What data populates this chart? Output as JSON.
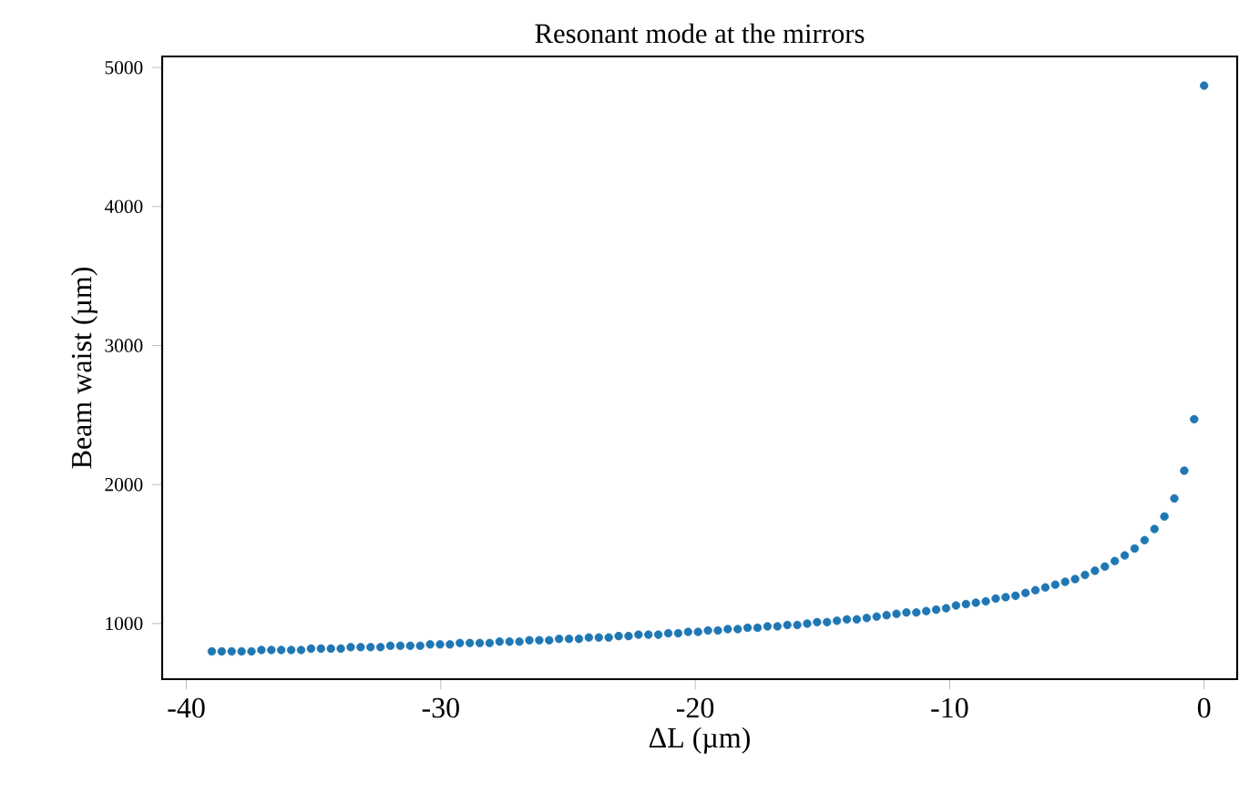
{
  "chart_data": {
    "type": "scatter",
    "title": "Resonant mode at the mirrors",
    "xlabel": "ΔL (µm)",
    "ylabel": "Beam waist (µm)",
    "x": [
      -39.0,
      -38.61,
      -38.22,
      -37.83,
      -37.44,
      -37.05,
      -36.66,
      -36.27,
      -35.88,
      -35.49,
      -35.1,
      -34.71,
      -34.32,
      -33.93,
      -33.54,
      -33.15,
      -32.76,
      -32.37,
      -31.98,
      -31.59,
      -31.2,
      -30.81,
      -30.42,
      -30.03,
      -29.64,
      -29.25,
      -28.86,
      -28.47,
      -28.08,
      -27.69,
      -27.3,
      -26.91,
      -26.52,
      -26.13,
      -25.74,
      -25.35,
      -24.96,
      -24.57,
      -24.18,
      -23.79,
      -23.4,
      -23.01,
      -22.62,
      -22.23,
      -21.84,
      -21.45,
      -21.06,
      -20.67,
      -20.28,
      -19.89,
      -19.5,
      -19.11,
      -18.72,
      -18.33,
      -17.94,
      -17.55,
      -17.16,
      -16.77,
      -16.38,
      -15.99,
      -15.6,
      -15.21,
      -14.82,
      -14.43,
      -14.04,
      -13.65,
      -13.26,
      -12.87,
      -12.48,
      -12.09,
      -11.7,
      -11.31,
      -10.92,
      -10.53,
      -10.14,
      -9.75,
      -9.36,
      -8.97,
      -8.58,
      -8.19,
      -7.8,
      -7.41,
      -7.02,
      -6.63,
      -6.24,
      -5.85,
      -5.46,
      -5.07,
      -4.68,
      -4.29,
      -3.9,
      -3.51,
      -3.12,
      -2.73,
      -2.34,
      -1.95,
      -1.56,
      -1.17,
      -0.78,
      -0.39,
      0
    ],
    "series": [
      {
        "color": "#1f77b4",
        "values": [
          800,
          800,
          800,
          800,
          800,
          810,
          810,
          810,
          810,
          810,
          820,
          820,
          820,
          820,
          830,
          830,
          830,
          830,
          840,
          840,
          840,
          840,
          850,
          850,
          850,
          860,
          860,
          860,
          860,
          870,
          870,
          870,
          880,
          880,
          880,
          890,
          890,
          890,
          900,
          900,
          900,
          910,
          910,
          920,
          920,
          920,
          930,
          930,
          940,
          940,
          950,
          950,
          960,
          960,
          970,
          970,
          980,
          980,
          990,
          990,
          1000,
          1010,
          1010,
          1020,
          1030,
          1030,
          1040,
          1050,
          1060,
          1070,
          1080,
          1080,
          1090,
          1100,
          1110,
          1130,
          1140,
          1150,
          1160,
          1180,
          1190,
          1200,
          1220,
          1240,
          1260,
          1280,
          1300,
          1320,
          1350,
          1380,
          1410,
          1450,
          1490,
          1540,
          1600,
          1680,
          1770,
          1900,
          2100,
          2470,
          4870
        ]
      }
    ],
    "xlim": [
      -40.95,
      1.3
    ],
    "ylim": [
      600,
      5080
    ],
    "xticks": [
      -40,
      -30,
      -20,
      -10,
      0
    ],
    "yticks": [
      1000,
      2000,
      3000,
      4000,
      5000
    ],
    "marker": "circle",
    "grid": false
  }
}
